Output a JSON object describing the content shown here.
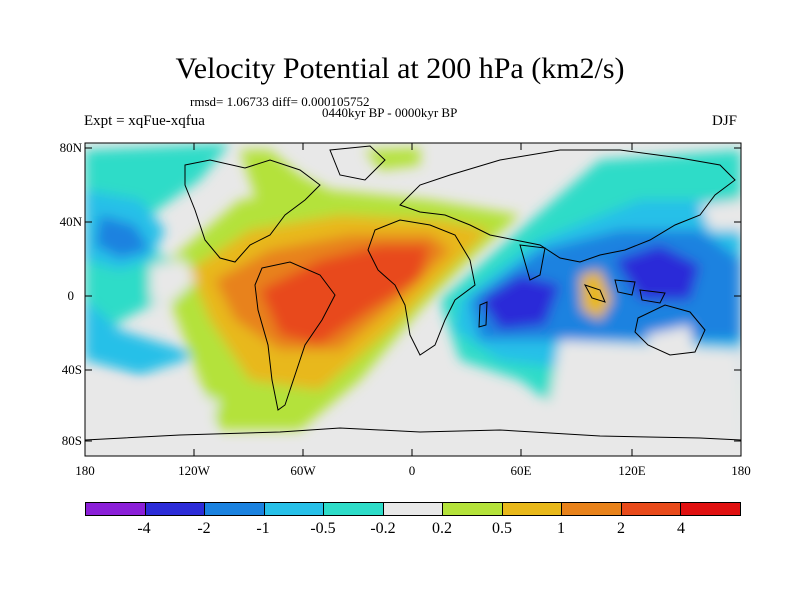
{
  "title": "Velocity Potential at 200 hPa (km2/s)",
  "stats": "rmsd= 1.06733 diff= 0.000105752",
  "period": "0440kyr BP - 0000kyr BP",
  "experiment": "Expt = xqFue-xqfua",
  "season": "DJF",
  "lat_labels": [
    "80N",
    "40N",
    "0",
    "40S",
    "80S"
  ],
  "lon_labels": [
    "180",
    "120W",
    "60W",
    "0",
    "60E",
    "120E",
    "180"
  ],
  "colorbar": {
    "colors": [
      "#8b1fd8",
      "#2c2cd8",
      "#1a82e0",
      "#27c0e8",
      "#2ddcc8",
      "#e8e8e8",
      "#b4e23a",
      "#e8b81a",
      "#e8821a",
      "#e84a1a",
      "#e01010"
    ],
    "labels": [
      "-4",
      "-2",
      "-1",
      "-0.5",
      "-0.2",
      "0.2",
      "0.5",
      "1",
      "2",
      "4"
    ]
  }
}
